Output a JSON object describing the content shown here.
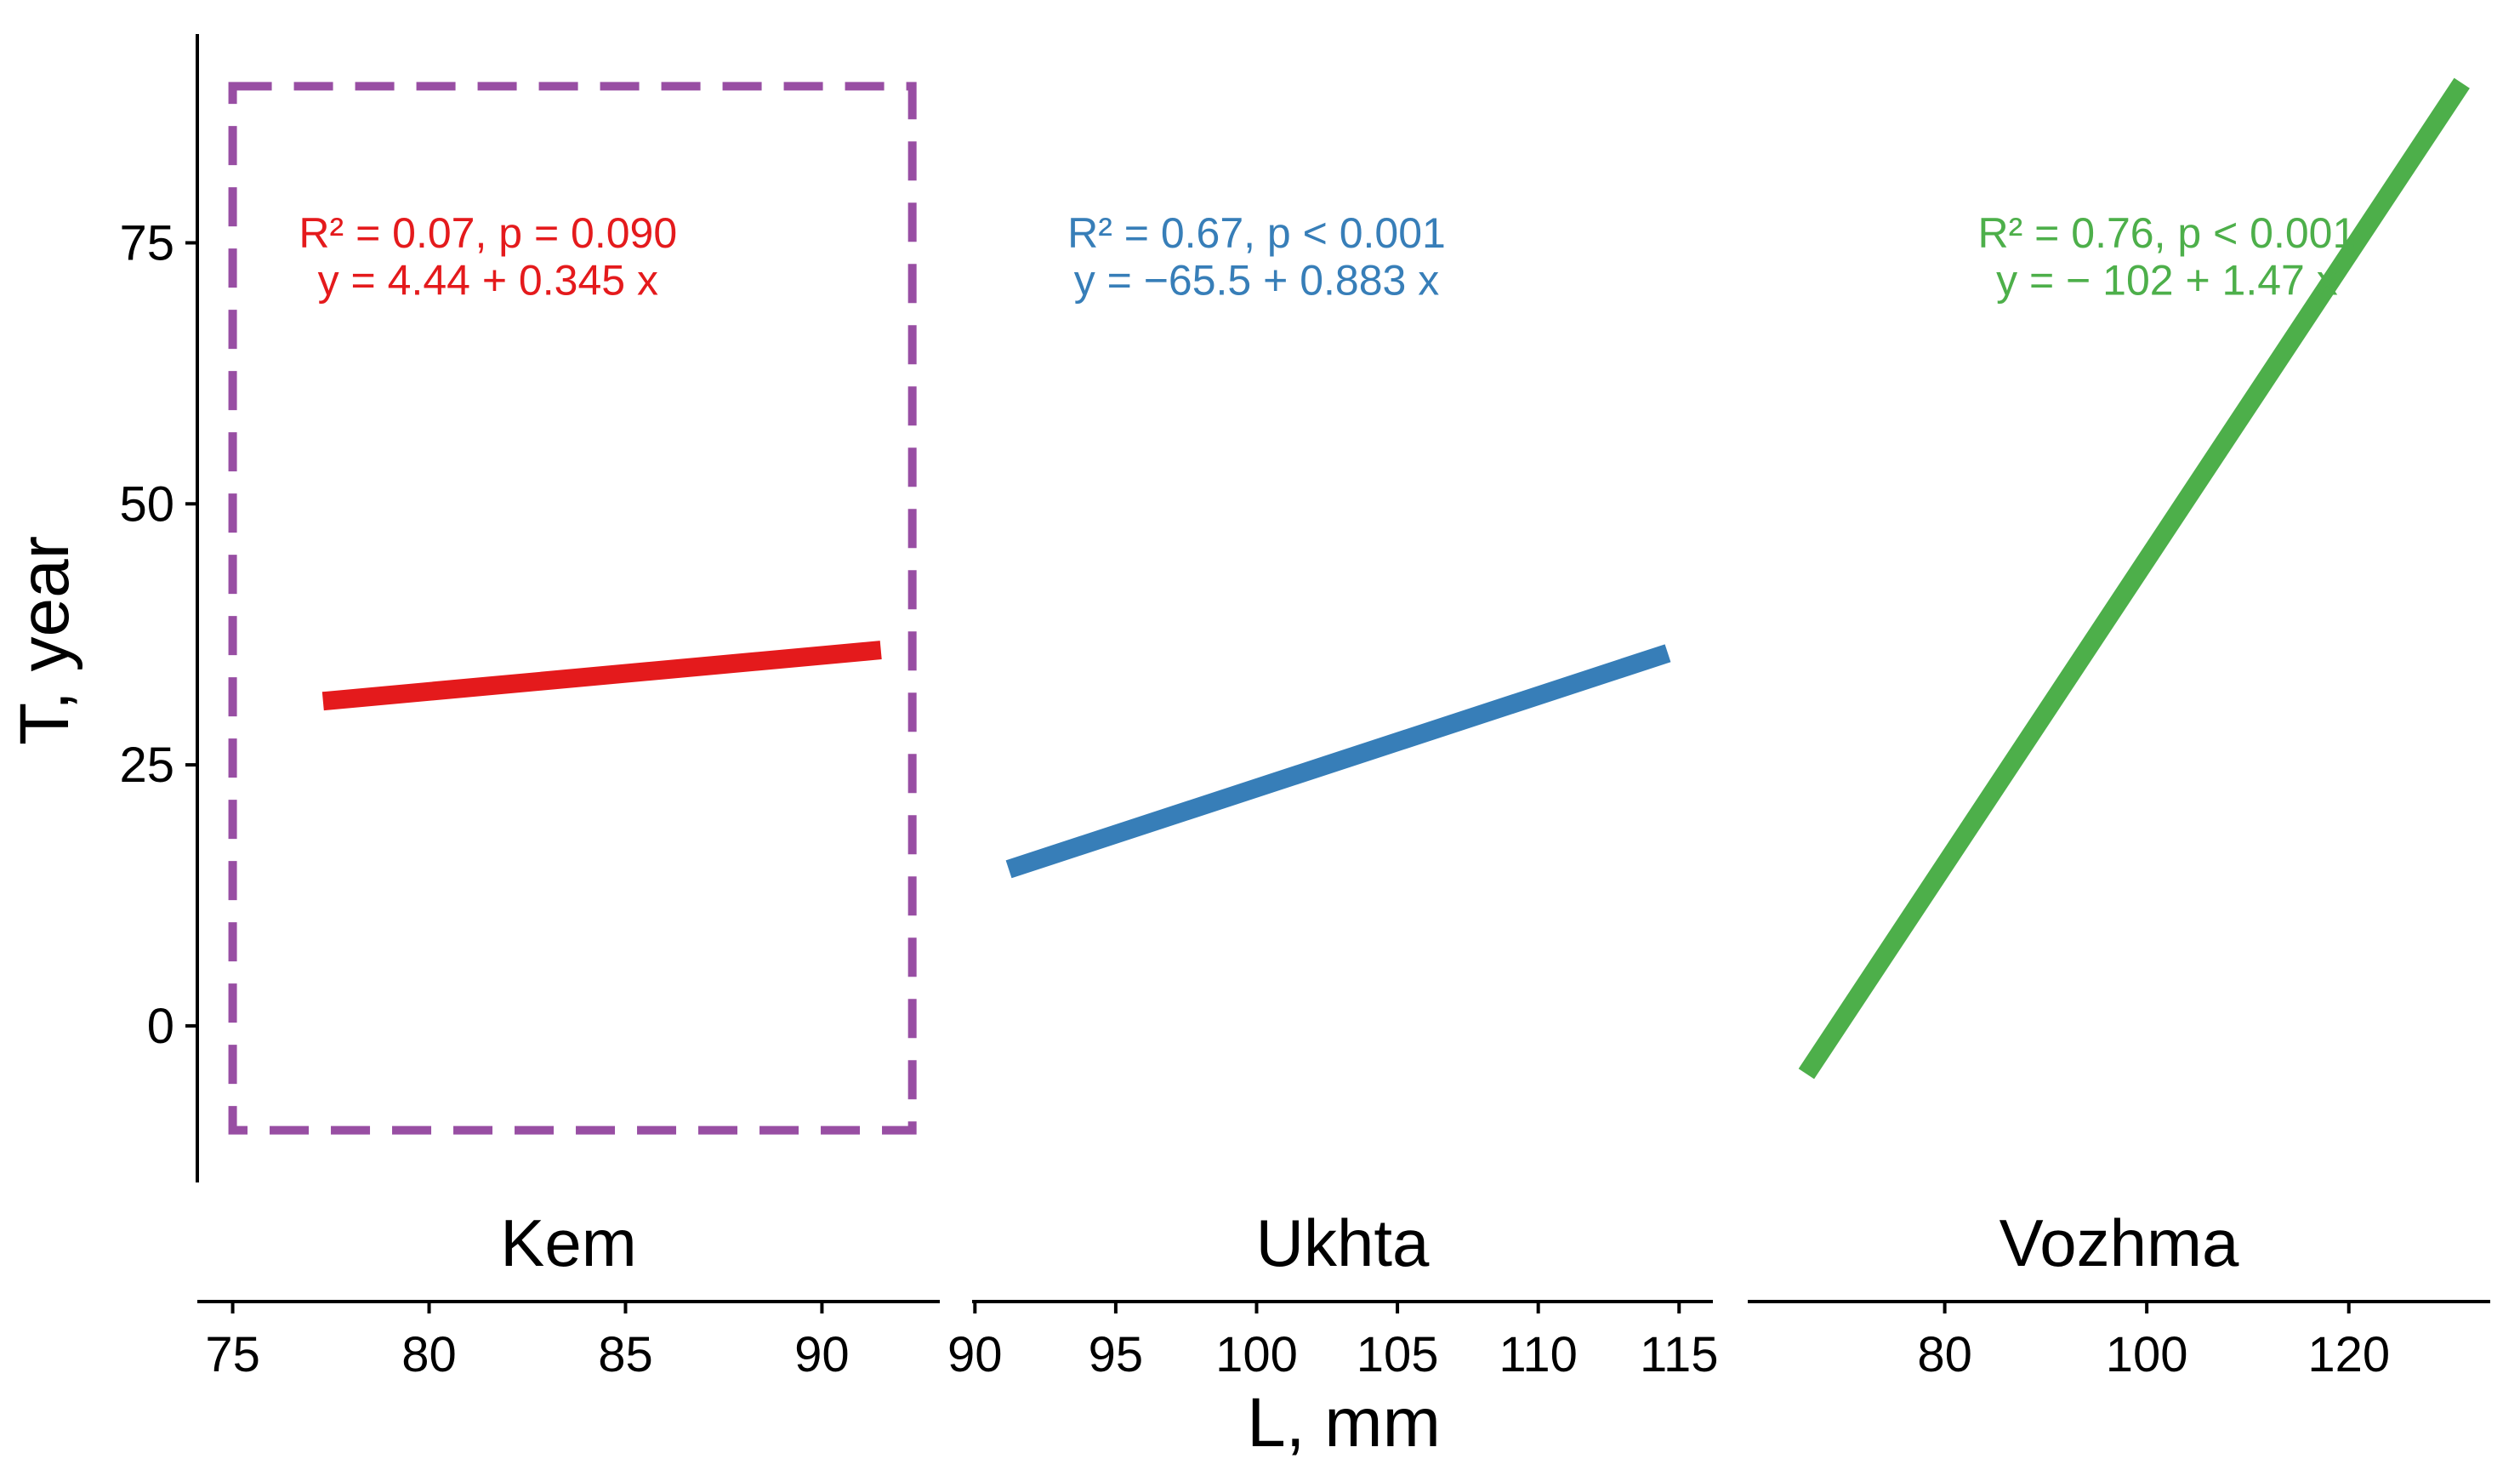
{
  "chart_data": {
    "type": "line",
    "y_axis": {
      "label": "T, year",
      "ticks": [
        0,
        25,
        50,
        75
      ],
      "range": [
        -15,
        95
      ]
    },
    "x_axis_label": "L, mm",
    "highlight_box": {
      "color": "#984ea3",
      "style": "dashed",
      "facet": "Kem",
      "x_range": [
        75,
        92.3
      ],
      "y_range": [
        -10,
        90
      ]
    },
    "facets": [
      {
        "name": "Kem",
        "color": "#e41a1c",
        "xlim": [
          74.1,
          93.0
        ],
        "x_ticks": [
          75,
          80,
          85,
          90
        ],
        "line": {
          "x": [
            77.3,
            91.5
          ],
          "y": [
            31.1,
            36.0
          ]
        },
        "stat_line1": "R² = 0.07, p = 0.090",
        "stat_line2": "y = 4.44 + 0.345 x",
        "stat_anchor": {
          "x": 81.5,
          "y": 76,
          "y2": 71.5
        }
      },
      {
        "name": "Ukhta",
        "color": "#377eb8",
        "xlim": [
          89.9,
          116.2
        ],
        "x_ticks": [
          90,
          95,
          100,
          105,
          110,
          115
        ],
        "line": {
          "x": [
            91.2,
            114.6
          ],
          "y": [
            15.0,
            35.7
          ]
        },
        "stat_line1": "R² = 0.67, p < 0.001",
        "stat_line2": "y = −65.5 + 0.883 x",
        "stat_anchor": {
          "x": 100,
          "y": 76,
          "y2": 71.5
        }
      },
      {
        "name": "Vozhma",
        "color": "#4daf4a",
        "xlim": [
          60.5,
          134.0
        ],
        "x_ticks": [
          80,
          100,
          120
        ],
        "line": {
          "x": [
            66.3,
            131.2
          ],
          "y": [
            -4.6,
            90.3
          ]
        },
        "stat_line1": "R² = 0.76, p < 0.001",
        "stat_line2": "y = − 102 + 1.47 x",
        "stat_anchor": {
          "x": 102,
          "y": 76,
          "y2": 71.5
        }
      }
    ]
  }
}
